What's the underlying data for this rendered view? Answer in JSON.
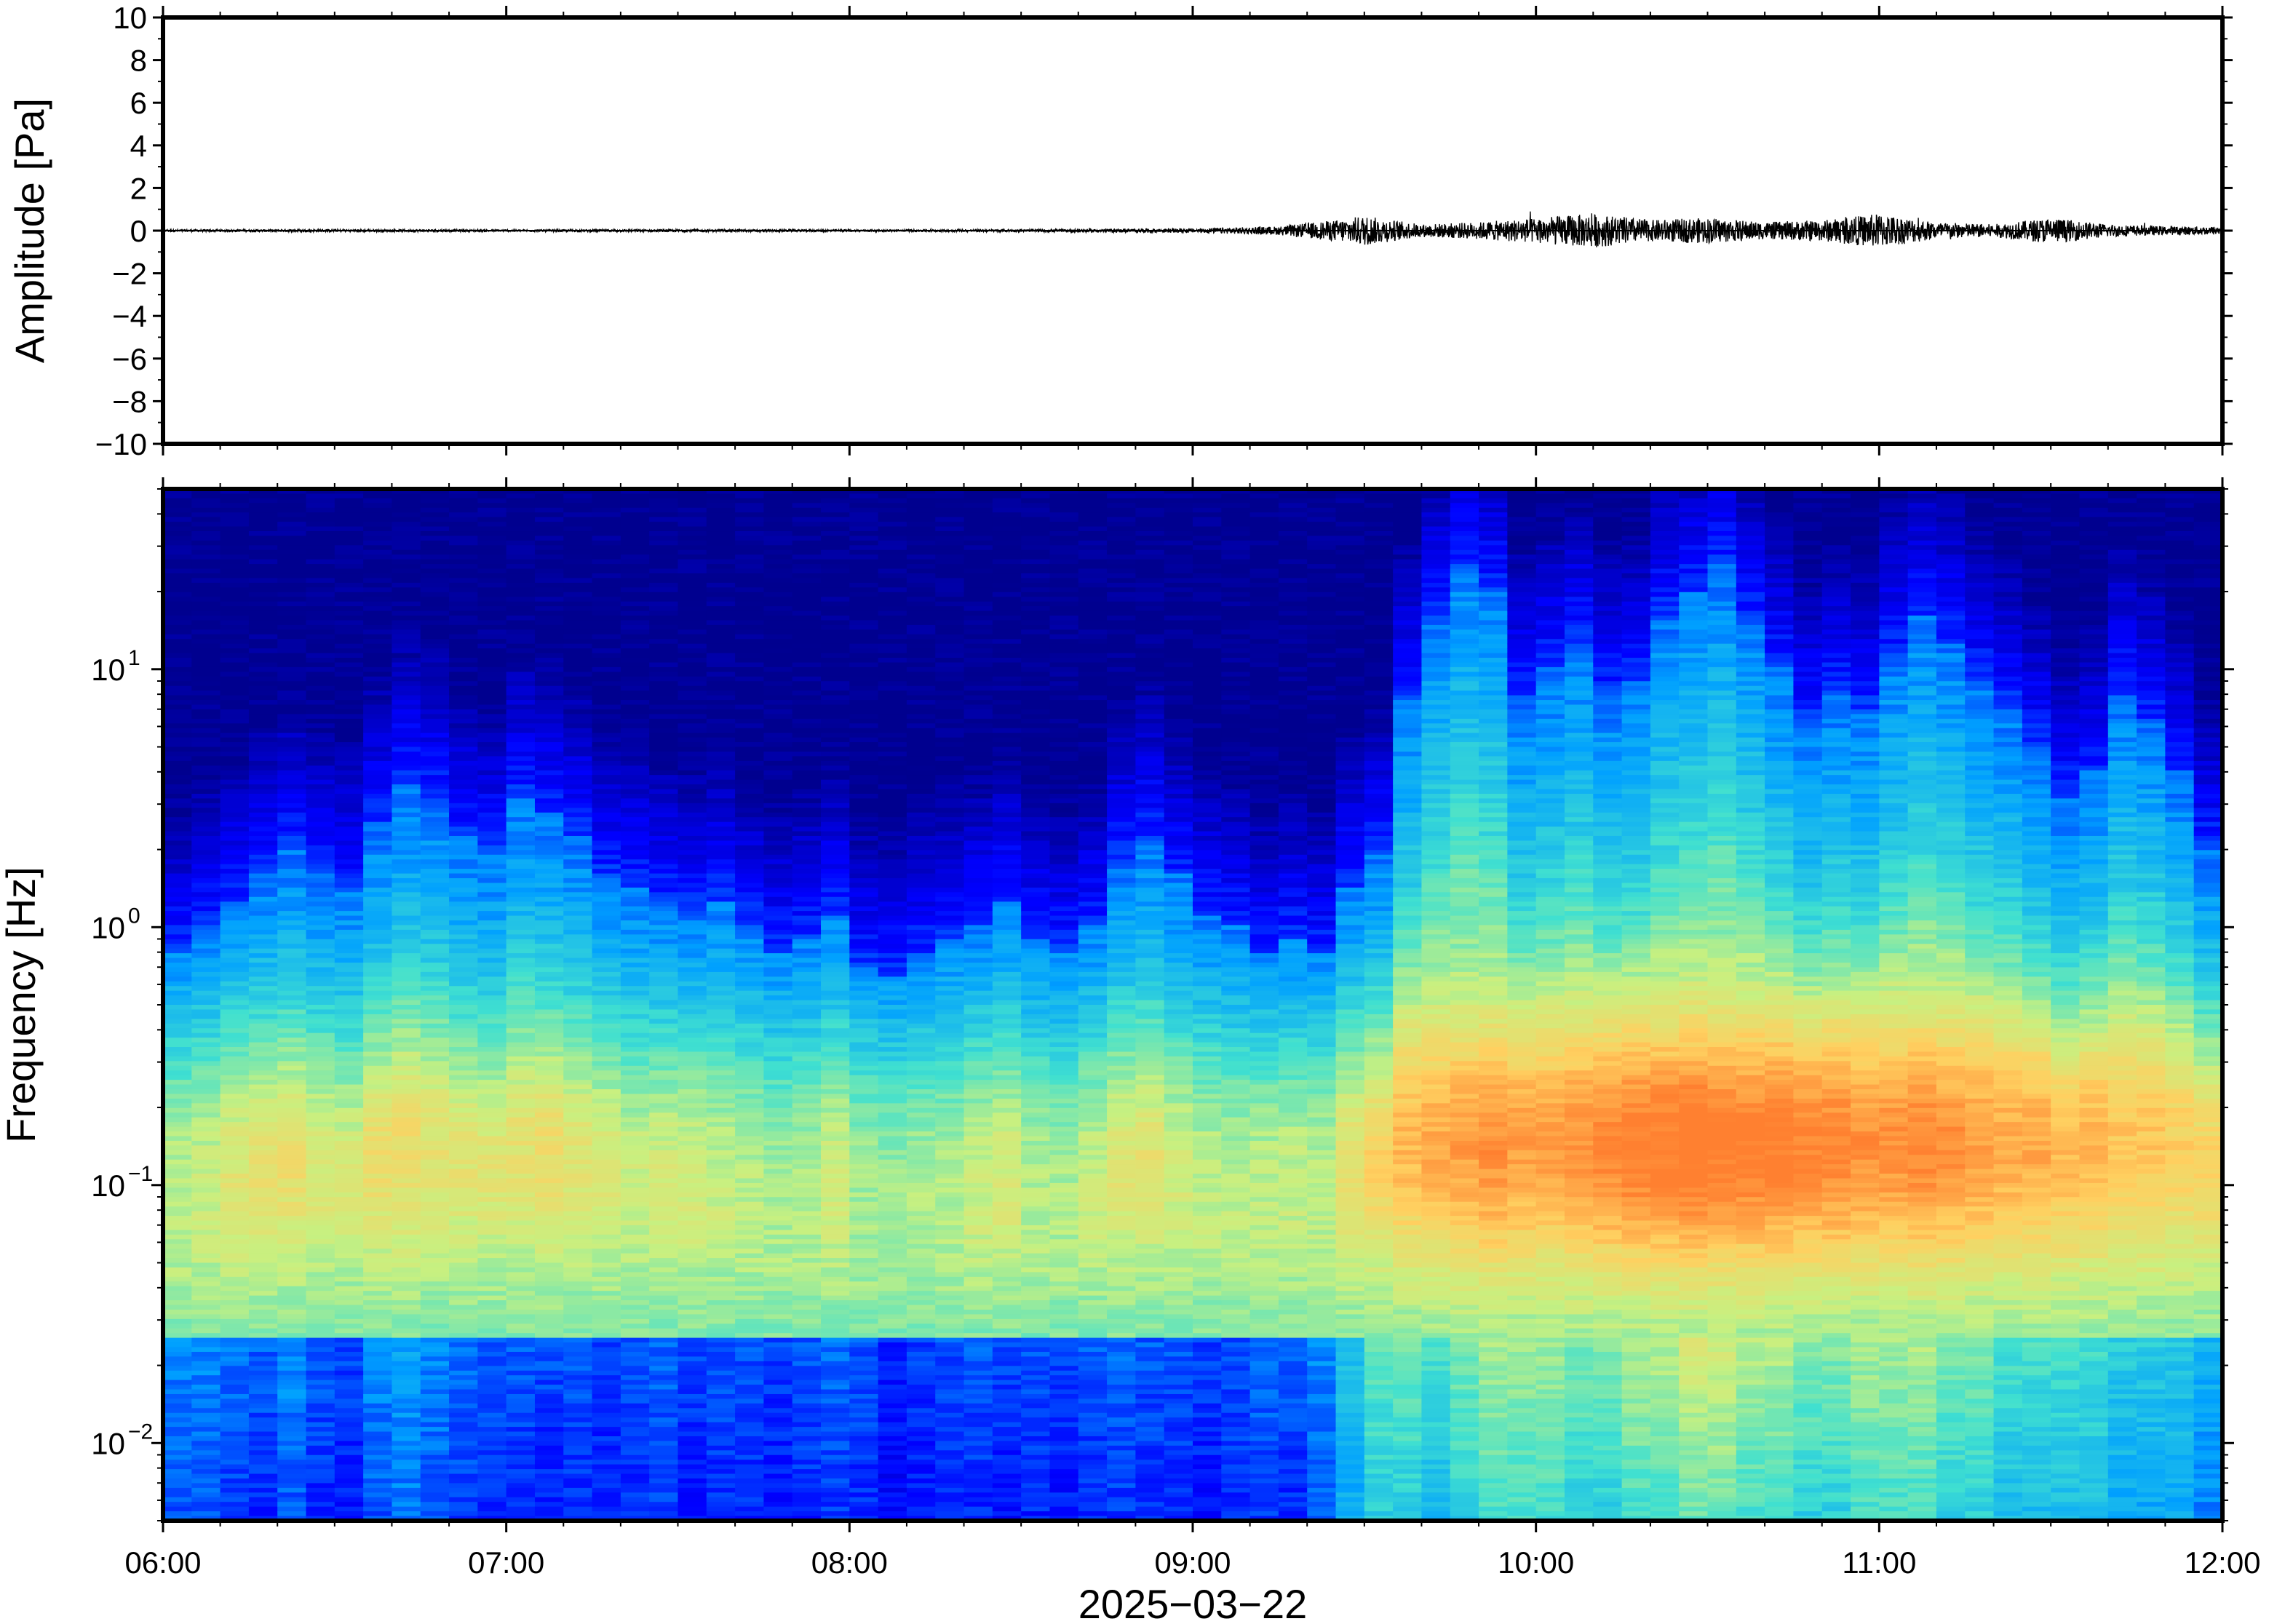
{
  "chart_data": [
    {
      "type": "line",
      "panel": "waveform",
      "ylabel": "Amplitude [Pa]",
      "xlabel": "",
      "ylim": [
        -10,
        10
      ],
      "yticks": [
        10,
        8,
        6,
        4,
        2,
        0,
        -2,
        -4,
        -6,
        -8,
        -10
      ],
      "ytick_labels": [
        "10",
        "8",
        "6",
        "4",
        "2",
        "0",
        "−2",
        "−4",
        "−6",
        "−8",
        "−10"
      ],
      "xlim": [
        "06:00",
        "12:00"
      ],
      "series": [
        {
          "x": [
            "06:00",
            "06:30",
            "07:00",
            "07:30",
            "08:00",
            "08:30",
            "09:00",
            "09:15",
            "09:25",
            "09:30",
            "09:40",
            "09:50",
            "10:00",
            "10:10",
            "10:20",
            "10:30",
            "10:40",
            "10:50",
            "11:00",
            "11:10",
            "11:20",
            "11:30",
            "11:40",
            "11:50",
            "12:00"
          ],
          "values": [
            0.05,
            0.06,
            0.05,
            0.06,
            0.05,
            0.06,
            0.1,
            0.2,
            0.5,
            0.7,
            0.3,
            0.4,
            0.6,
            0.8,
            0.5,
            0.6,
            0.4,
            0.5,
            0.8,
            0.4,
            0.3,
            0.6,
            0.3,
            0.2,
            0.2
          ]
        }
      ],
      "grid": false,
      "line_color": "#000000"
    },
    {
      "type": "heatmap",
      "panel": "spectrogram",
      "ylabel": "Frequency [Hz]",
      "xlabel": "2025−03−22",
      "yscale": "log",
      "ylim": [
        0.005,
        50
      ],
      "yticks": [
        {
          "base": "10",
          "exp": "1",
          "value": 10
        },
        {
          "base": "10",
          "exp": "0",
          "value": 1
        },
        {
          "base": "10",
          "exp": "−1",
          "value": 0.1
        },
        {
          "base": "10",
          "exp": "−2",
          "value": 0.01
        }
      ],
      "xticks": [
        "06:00",
        "07:00",
        "08:00",
        "09:00",
        "10:00",
        "11:00",
        "12:00"
      ],
      "xlim": [
        "06:00",
        "12:00"
      ],
      "colormap": "jet",
      "colors": [
        "#00008f",
        "#0000ff",
        "#00a0ff",
        "#40e0d0",
        "#c8f080",
        "#ffd060",
        "#ff8030"
      ],
      "columns": 72,
      "column_span_minutes": 5,
      "upper_edge_log10_hz": [
        -0.1,
        0.0,
        0.1,
        0.2,
        0.3,
        0.2,
        0.15,
        0.4,
        0.55,
        0.5,
        0.35,
        0.3,
        0.5,
        0.45,
        0.35,
        0.2,
        0.15,
        0.1,
        0.05,
        0.1,
        0.0,
        -0.1,
        -0.05,
        0.05,
        -0.15,
        -0.2,
        -0.1,
        -0.05,
        0.0,
        0.1,
        -0.05,
        -0.1,
        0.0,
        0.25,
        0.35,
        0.2,
        0.05,
        0.0,
        -0.1,
        -0.05,
        -0.1,
        0.15,
        0.3,
        0.9,
        1.2,
        1.4,
        1.3,
        0.9,
        1.0,
        1.1,
        0.9,
        0.95,
        1.2,
        1.3,
        1.4,
        1.2,
        1.0,
        0.8,
        0.9,
        0.85,
        1.05,
        1.2,
        1.1,
        0.95,
        0.85,
        0.7,
        0.5,
        0.6,
        0.9,
        0.8,
        0.6,
        0.3
      ],
      "hot_band_strength": [
        0.35,
        0.35,
        0.4,
        0.4,
        0.4,
        0.35,
        0.35,
        0.4,
        0.4,
        0.35,
        0.35,
        0.35,
        0.35,
        0.4,
        0.35,
        0.35,
        0.3,
        0.35,
        0.35,
        0.3,
        0.3,
        0.3,
        0.3,
        0.35,
        0.3,
        0.3,
        0.3,
        0.3,
        0.35,
        0.35,
        0.3,
        0.3,
        0.35,
        0.35,
        0.35,
        0.3,
        0.3,
        0.3,
        0.35,
        0.35,
        0.35,
        0.45,
        0.5,
        0.6,
        0.65,
        0.7,
        0.75,
        0.7,
        0.7,
        0.75,
        0.8,
        0.85,
        0.85,
        0.9,
        0.85,
        0.85,
        0.85,
        0.8,
        0.8,
        0.75,
        0.75,
        0.8,
        0.75,
        0.7,
        0.65,
        0.65,
        0.6,
        0.6,
        0.55,
        0.55,
        0.5,
        0.5
      ],
      "low_freq_floor": [
        0.25,
        0.25,
        0.22,
        0.2,
        0.25,
        0.2,
        0.18,
        0.25,
        0.28,
        0.25,
        0.22,
        0.2,
        0.2,
        0.18,
        0.2,
        0.18,
        0.2,
        0.22,
        0.18,
        0.2,
        0.2,
        0.18,
        0.2,
        0.22,
        0.2,
        0.15,
        0.18,
        0.2,
        0.2,
        0.18,
        0.2,
        0.18,
        0.2,
        0.22,
        0.2,
        0.2,
        0.18,
        0.2,
        0.22,
        0.2,
        0.25,
        0.35,
        0.45,
        0.45,
        0.4,
        0.45,
        0.5,
        0.5,
        0.5,
        0.45,
        0.45,
        0.5,
        0.5,
        0.55,
        0.55,
        0.5,
        0.5,
        0.45,
        0.45,
        0.5,
        0.5,
        0.5,
        0.45,
        0.45,
        0.4,
        0.4,
        0.4,
        0.4,
        0.35,
        0.35,
        0.35,
        0.3
      ]
    }
  ]
}
